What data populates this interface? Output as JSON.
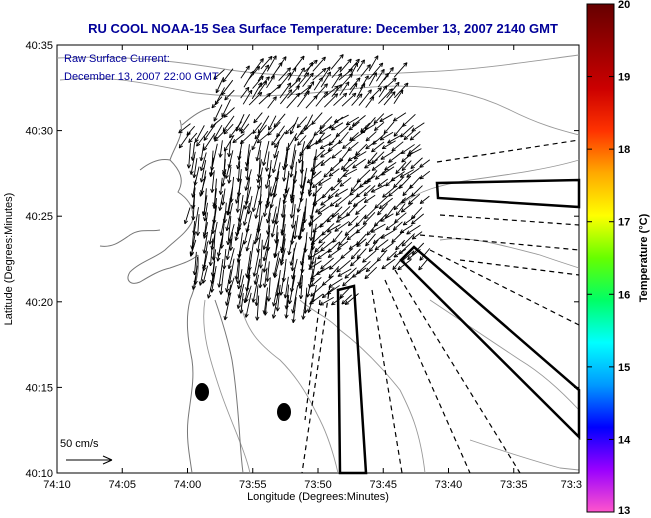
{
  "title": "RU COOL  NOAA-15  Sea Surface Temperature:  December 13, 2007 2140 GMT",
  "overlay": {
    "line1": "Raw Surface Current:",
    "line2": "December 13, 2007 22:00 GMT"
  },
  "axes": {
    "xlabel": "Longitude (Degrees:Minutes)",
    "ylabel": "Latitude (Degrees:Minutes)",
    "xticks": [
      "74:10",
      "74:05",
      "74:00",
      "73:55",
      "73:50",
      "73:45",
      "73:40",
      "73:35",
      "73:3"
    ],
    "yticks": [
      "40:35",
      "40:30",
      "40:25",
      "40:20",
      "40:15",
      "40:10"
    ]
  },
  "scale_label": "50 cm/s",
  "colorbar": {
    "label": "Temperature (°C)",
    "min": 13,
    "max": 20,
    "ticks": [
      "20",
      "19",
      "18",
      "17",
      "16",
      "15",
      "14",
      "13"
    ],
    "colors": [
      "#ff55cc",
      "#9900ff",
      "#0000ff",
      "#0099ff",
      "#00ffff",
      "#00ff66",
      "#66ff00",
      "#ffff00",
      "#ffaa00",
      "#ff3300",
      "#cc0000",
      "#990000",
      "#660000"
    ]
  },
  "colors": {
    "title": "#000099",
    "overlay_text": "#000099",
    "land_outline": "#888888",
    "arrows": "#000000"
  }
}
